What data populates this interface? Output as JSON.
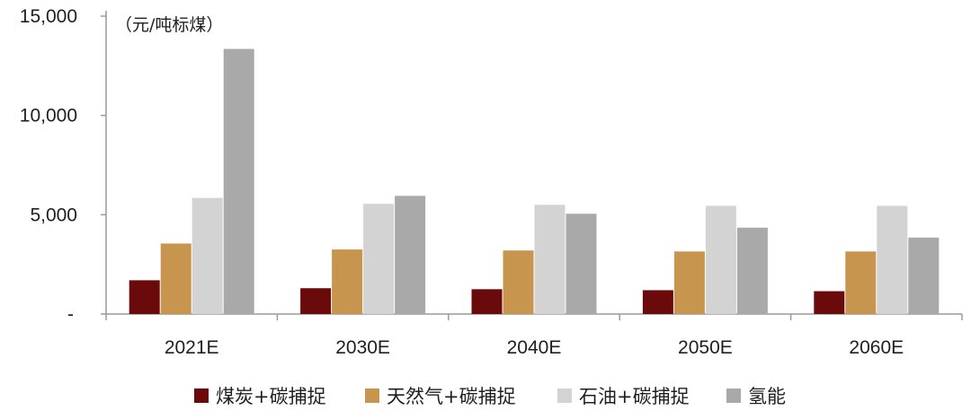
{
  "chart_data": {
    "type": "bar",
    "unit_label": "（元/吨标煤）",
    "categories": [
      "2021E",
      "2030E",
      "2040E",
      "2050E",
      "2060E"
    ],
    "series": [
      {
        "name": "煤炭+碳捕捉",
        "color": "#6b0a0a",
        "values": [
          1700,
          1300,
          1250,
          1200,
          1150
        ]
      },
      {
        "name": "天然气+碳捕捉",
        "color": "#c8954f",
        "values": [
          3550,
          3250,
          3200,
          3150,
          3150
        ]
      },
      {
        "name": "石油+碳捕捉",
        "color": "#d3d3d3",
        "values": [
          5850,
          5550,
          5500,
          5450,
          5450
        ]
      },
      {
        "name": "氢能",
        "color": "#a9a9a9",
        "values": [
          13350,
          5950,
          5050,
          4350,
          3850
        ]
      }
    ],
    "ylim": [
      0,
      15000
    ],
    "yticks": [
      {
        "value": 0,
        "label": "-"
      },
      {
        "value": 5000,
        "label": "5,000"
      },
      {
        "value": 10000,
        "label": "10,000"
      },
      {
        "value": 15000,
        "label": "15,000"
      }
    ],
    "grid": false,
    "legend_position": "bottom"
  }
}
